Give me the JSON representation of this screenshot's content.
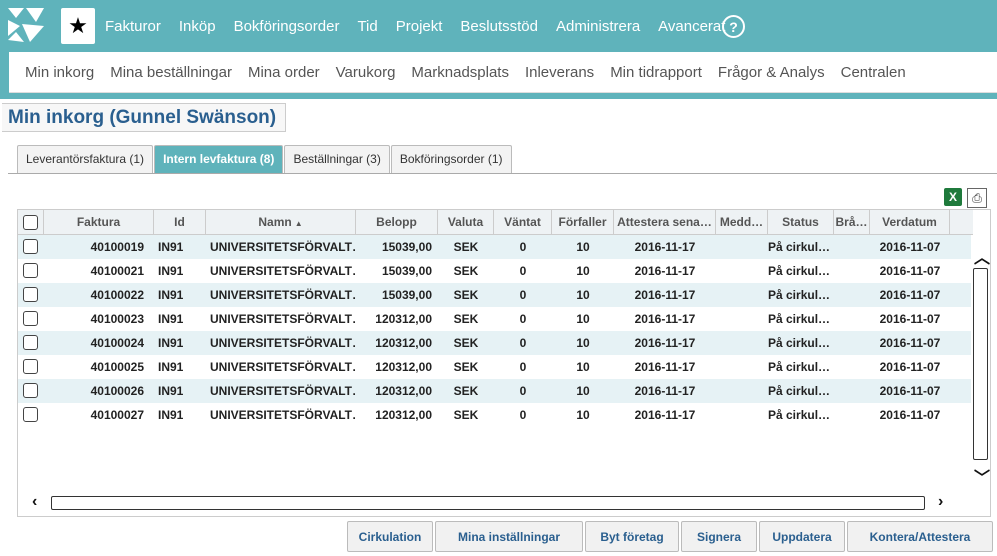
{
  "nav": {
    "top_items": [
      "Fakturor",
      "Inköp",
      "Bokföringsorder",
      "Tid",
      "Projekt",
      "Beslutsstöd",
      "Administrera",
      "Avancerat"
    ],
    "help_label": "?",
    "sub_items": [
      "Min inkorg",
      "Mina beställningar",
      "Mina order",
      "Varukorg",
      "Marknadsplats",
      "Inleverans",
      "Min tidrapport",
      "Frågor & Analys",
      "Centralen"
    ]
  },
  "page": {
    "title": "Min inkorg (Gunnel Swänson)"
  },
  "tabs": [
    {
      "label": "Leverantörsfaktura (1)",
      "active": false
    },
    {
      "label": "Intern levfaktura (8)",
      "active": true
    },
    {
      "label": "Beställningar (3)",
      "active": false
    },
    {
      "label": "Bokföringsorder (1)",
      "active": false
    }
  ],
  "toolbar": {
    "excel_icon": "X"
  },
  "grid": {
    "columns": [
      "Faktura",
      "Id",
      "Namn",
      "Belopp",
      "Valuta",
      "Väntat",
      "Förfaller",
      "Attestera sena…",
      "Medd…",
      "Status",
      "Brå…",
      "Verdatum"
    ],
    "sort_indicator": "▲",
    "rows": [
      [
        "40100019",
        "IN91",
        "UNIVERSITETSFÖRVALT…",
        "15039,00",
        "SEK",
        "0",
        "10",
        "2016-11-17",
        "",
        "På cirkul…",
        "",
        "2016-11-07"
      ],
      [
        "40100021",
        "IN91",
        "UNIVERSITETSFÖRVALT…",
        "15039,00",
        "SEK",
        "0",
        "10",
        "2016-11-17",
        "",
        "På cirkul…",
        "",
        "2016-11-07"
      ],
      [
        "40100022",
        "IN91",
        "UNIVERSITETSFÖRVALT…",
        "15039,00",
        "SEK",
        "0",
        "10",
        "2016-11-17",
        "",
        "På cirkul…",
        "",
        "2016-11-07"
      ],
      [
        "40100023",
        "IN91",
        "UNIVERSITETSFÖRVALT…",
        "120312,00",
        "SEK",
        "0",
        "10",
        "2016-11-17",
        "",
        "På cirkul…",
        "",
        "2016-11-07"
      ],
      [
        "40100024",
        "IN91",
        "UNIVERSITETSFÖRVALT…",
        "120312,00",
        "SEK",
        "0",
        "10",
        "2016-11-17",
        "",
        "På cirkul…",
        "",
        "2016-11-07"
      ],
      [
        "40100025",
        "IN91",
        "UNIVERSITETSFÖRVALT…",
        "120312,00",
        "SEK",
        "0",
        "10",
        "2016-11-17",
        "",
        "På cirkul…",
        "",
        "2016-11-07"
      ],
      [
        "40100026",
        "IN91",
        "UNIVERSITETSFÖRVALT…",
        "120312,00",
        "SEK",
        "0",
        "10",
        "2016-11-17",
        "",
        "På cirkul…",
        "",
        "2016-11-07"
      ],
      [
        "40100027",
        "IN91",
        "UNIVERSITETSFÖRVALT…",
        "120312,00",
        "SEK",
        "0",
        "10",
        "2016-11-17",
        "",
        "På cirkul…",
        "",
        "2016-11-07"
      ]
    ]
  },
  "actions": {
    "cirkulation": "Cirkulation",
    "mina_installningar": "Mina inställningar",
    "byt_foretag": "Byt företag",
    "signera": "Signera",
    "uppdatera": "Uppdatera",
    "kontera_attestera": "Kontera/Attestera"
  },
  "colors": {
    "brand": "#5fb3bb",
    "title": "#2a5f8f",
    "row_alt": "#e6f2f5"
  }
}
